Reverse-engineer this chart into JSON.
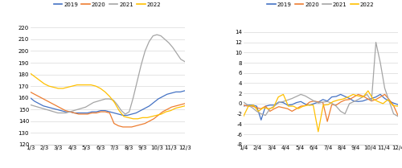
{
  "chart1": {
    "ylim": [
      120,
      225
    ],
    "yticks": [
      120,
      130,
      140,
      150,
      160,
      170,
      180,
      190,
      200,
      210,
      220
    ],
    "x_labels": [
      "1/3",
      "2/3",
      "3/3",
      "4/3",
      "5/3",
      "6/3",
      "7/3",
      "8/3",
      "9/3",
      "10/3",
      "11/3",
      "12/3"
    ],
    "series_2019": [
      160,
      157,
      155,
      153,
      152,
      151,
      150,
      149,
      148,
      148,
      147,
      147,
      147,
      147,
      148,
      148,
      149,
      149,
      148,
      147,
      146,
      145,
      145,
      146,
      147,
      149,
      151,
      153,
      156,
      159,
      161,
      163,
      164,
      165,
      165,
      166
    ],
    "series_2020": [
      165,
      163,
      161,
      159,
      157,
      155,
      153,
      151,
      149,
      148,
      147,
      146,
      146,
      146,
      147,
      147,
      148,
      148,
      147,
      138,
      136,
      135,
      135,
      135,
      136,
      137,
      138,
      140,
      142,
      145,
      148,
      150,
      152,
      153,
      154,
      155
    ],
    "series_2021": [
      154,
      153,
      152,
      151,
      150,
      149,
      148,
      147,
      147,
      147,
      148,
      149,
      150,
      151,
      152,
      154,
      156,
      157,
      158,
      159,
      159,
      158,
      154,
      149,
      146,
      148,
      160,
      174,
      188,
      200,
      208,
      213,
      214,
      213,
      210,
      207,
      203,
      198,
      193,
      191
    ],
    "series_2022": [
      181,
      178,
      175,
      172,
      170,
      169,
      168,
      168,
      169,
      170,
      171,
      171,
      171,
      171,
      170,
      168,
      165,
      161,
      156,
      149,
      144,
      143,
      142,
      142,
      143,
      143,
      144,
      145,
      146,
      148,
      149,
      151,
      152,
      153
    ],
    "color_2019": "#4472C4",
    "color_2020": "#ED7D31",
    "color_2021": "#A5A5A5",
    "color_2022": "#FFC000"
  },
  "chart2": {
    "ylim": [
      -8,
      16
    ],
    "yticks": [
      -8,
      -6,
      -4,
      -2,
      0,
      2,
      4,
      6,
      8,
      10,
      12,
      14
    ],
    "x_labels": [
      "1/4",
      "2/4",
      "3/4",
      "4/4",
      "5/4",
      "6/4",
      "7/4",
      "8/4",
      "9/4",
      "10/4",
      "11/4",
      "12/4"
    ],
    "series_2019": [
      -0.5,
      -0.3,
      -0.3,
      -0.5,
      -3.2,
      -0.5,
      -0.3,
      -0.3,
      0.3,
      0.2,
      -0.3,
      -0.2,
      0.2,
      0.4,
      -0.1,
      -0.3,
      0.0,
      0.3,
      0.8,
      0.5,
      1.3,
      1.4,
      1.8,
      1.4,
      1.0,
      0.5,
      0.4,
      0.5,
      0.8,
      1.0,
      1.3,
      1.8,
      1.0,
      0.5,
      0.1,
      -0.2
    ],
    "series_2020": [
      -0.3,
      -0.5,
      -0.5,
      -0.8,
      -1.0,
      -0.5,
      -1.5,
      -1.0,
      -0.6,
      -0.8,
      -1.0,
      -1.5,
      -1.0,
      -0.5,
      -0.4,
      0.3,
      0.5,
      0.3,
      0.2,
      -3.5,
      -0.2,
      -0.3,
      0.3,
      0.7,
      0.8,
      1.3,
      1.8,
      1.5,
      1.0,
      0.5,
      0.8,
      1.3,
      1.8,
      0.8,
      -0.4,
      -2.3
    ],
    "series_2021": [
      0.3,
      -0.3,
      -0.8,
      -1.5,
      -2.0,
      -2.3,
      -1.0,
      -0.5,
      0.2,
      0.4,
      0.7,
      1.0,
      1.4,
      1.8,
      1.5,
      1.0,
      0.5,
      0.1,
      0.3,
      0.4,
      0.1,
      -0.5,
      -1.5,
      -2.0,
      0.0,
      0.4,
      0.8,
      1.3,
      1.8,
      0.5,
      12.0,
      8.0,
      3.0,
      0.5,
      -2.0,
      -2.5
    ],
    "series_2022": [
      -2.5,
      -0.5,
      -0.3,
      -1.5,
      -0.8,
      -1.0,
      -0.8,
      1.3,
      1.8,
      -0.5,
      -0.5,
      -1.0,
      -0.5,
      -0.3,
      -0.3,
      -5.5,
      -0.3,
      -0.2,
      0.4,
      0.7,
      0.9,
      1.3,
      1.8,
      1.5,
      1.3,
      2.5,
      0.9,
      0.4,
      0.0,
      0.8,
      -0.4,
      -0.5
    ],
    "color_2019": "#4472C4",
    "color_2020": "#ED7D31",
    "color_2021": "#A5A5A5",
    "color_2022": "#FFC000"
  },
  "legend_labels": [
    "2019",
    "2020",
    "2021",
    "2022"
  ],
  "legend_colors": [
    "#4472C4",
    "#ED7D31",
    "#A5A5A5",
    "#FFC000"
  ],
  "background_color": "#FFFFFF",
  "grid_color": "#D9D9D9"
}
